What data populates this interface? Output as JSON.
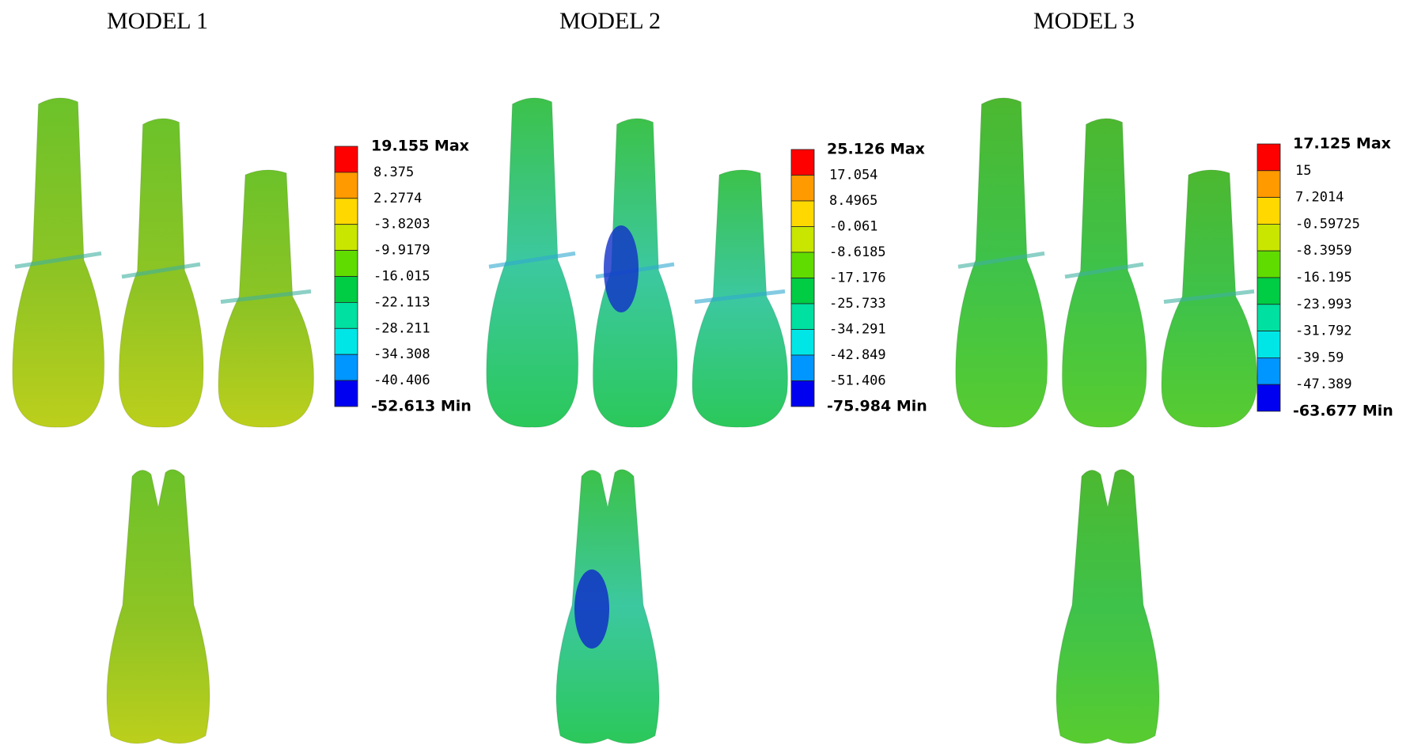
{
  "models": [
    {
      "title": "MODEL 1",
      "legend": [
        "19.155 Max",
        "8.375",
        "2.2774",
        "-3.8203",
        "-9.9179",
        "-16.015",
        "-22.113",
        "-28.211",
        "-34.308",
        "-40.406",
        "-52.613 Min"
      ]
    },
    {
      "title": "MODEL 2",
      "legend": [
        "25.126 Max",
        "17.054",
        "8.4965",
        "-0.061",
        "-8.6185",
        "-17.176",
        "-25.733",
        "-34.291",
        "-42.849",
        "-51.406",
        "-75.984 Min"
      ]
    },
    {
      "title": "MODEL 3",
      "legend": [
        "17.125 Max",
        "15",
        "7.2014",
        "-0.59725",
        "-8.3959",
        "-16.195",
        "-23.993",
        "-31.792",
        "-39.59",
        "-47.389",
        "-63.677 Min"
      ]
    }
  ],
  "legend_colors": [
    "#ff0000",
    "#ff9a00",
    "#ffd800",
    "#c8e600",
    "#60dc00",
    "#00cc44",
    "#00e0a0",
    "#00e6e6",
    "#0096ff",
    "#0000f0"
  ]
}
